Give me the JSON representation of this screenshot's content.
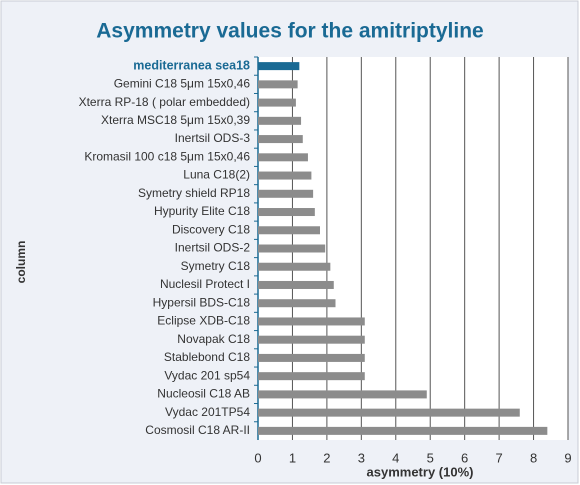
{
  "chart_data": {
    "type": "hbar",
    "title": "Asymmetry values for the amitriptyline",
    "x_label": "asymmetry (10%)",
    "y_label": "column",
    "categories": [
      "mediterranea sea18",
      "Gemini C18 5μm 15x0,46",
      "Xterra RP-18 ( polar embedded)",
      "Xterra MSC18 5μm 15x0,39",
      "Inertsil ODS-3",
      "Kromasil 100 c18 5μm 15x0,46",
      "Luna C18(2)",
      "Symetry shield RP18",
      "Hypurity Elite C18",
      "Discovery C18",
      "Inertsil ODS-2",
      "Symetry C18",
      "Nuclesil Protect I",
      "Hypersil BDS-C18",
      "Eclipse XDB-C18",
      "Novapak C18",
      "Stablebond C18",
      "Vydac 201 sp54",
      "Nucleosil C18 AB",
      "Vydac 201TP54",
      "Cosmosil C18 AR-II"
    ],
    "values": [
      1.2,
      1.15,
      1.1,
      1.25,
      1.3,
      1.45,
      1.55,
      1.6,
      1.65,
      1.8,
      1.95,
      2.1,
      2.2,
      2.25,
      3.1,
      3.1,
      3.1,
      3.1,
      4.9,
      7.6,
      8.4
    ],
    "colors": [
      "#1a6a94",
      "#8c8c8c",
      "#8c8c8c",
      "#8c8c8c",
      "#8c8c8c",
      "#8c8c8c",
      "#8c8c8c",
      "#8c8c8c",
      "#8c8c8c",
      "#8c8c8c",
      "#8c8c8c",
      "#8c8c8c",
      "#8c8c8c",
      "#8c8c8c",
      "#8c8c8c",
      "#8c8c8c",
      "#8c8c8c",
      "#8c8c8c",
      "#8c8c8c",
      "#8c8c8c",
      "#8c8c8c"
    ],
    "xlim": [
      0,
      9
    ],
    "xticks": [
      0,
      1,
      2,
      3,
      4,
      5,
      6,
      7,
      8,
      9
    ],
    "grid": true
  }
}
